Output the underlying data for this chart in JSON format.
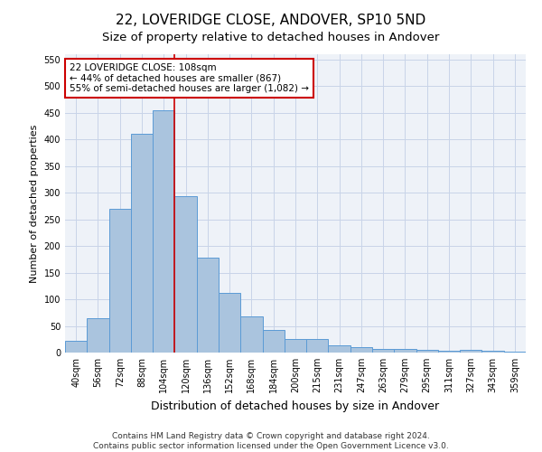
{
  "title": "22, LOVERIDGE CLOSE, ANDOVER, SP10 5ND",
  "subtitle": "Size of property relative to detached houses in Andover",
  "xlabel": "Distribution of detached houses by size in Andover",
  "ylabel": "Number of detached properties",
  "categories": [
    "40sqm",
    "56sqm",
    "72sqm",
    "88sqm",
    "104sqm",
    "120sqm",
    "136sqm",
    "152sqm",
    "168sqm",
    "184sqm",
    "200sqm",
    "215sqm",
    "231sqm",
    "247sqm",
    "263sqm",
    "279sqm",
    "295sqm",
    "311sqm",
    "327sqm",
    "343sqm",
    "359sqm"
  ],
  "values": [
    22,
    65,
    270,
    410,
    455,
    293,
    178,
    112,
    68,
    43,
    25,
    25,
    13,
    10,
    7,
    7,
    5,
    4,
    5,
    3,
    2
  ],
  "bar_color": "#aac4de",
  "bar_edge_color": "#5b9bd5",
  "property_line_index": 4,
  "annotation_line1": "22 LOVERIDGE CLOSE: 108sqm",
  "annotation_line2": "← 44% of detached houses are smaller (867)",
  "annotation_line3": "55% of semi-detached houses are larger (1,082) →",
  "annotation_box_color": "#ffffff",
  "annotation_box_edge_color": "#cc0000",
  "red_line_color": "#cc0000",
  "ylim": [
    0,
    560
  ],
  "yticks": [
    0,
    50,
    100,
    150,
    200,
    250,
    300,
    350,
    400,
    450,
    500,
    550
  ],
  "grid_color": "#c8d4e8",
  "background_color": "#eef2f8",
  "footer_line1": "Contains HM Land Registry data © Crown copyright and database right 2024.",
  "footer_line2": "Contains public sector information licensed under the Open Government Licence v3.0.",
  "title_fontsize": 11,
  "subtitle_fontsize": 9.5,
  "xlabel_fontsize": 9,
  "ylabel_fontsize": 8,
  "tick_fontsize": 7,
  "annotation_fontsize": 7.5,
  "footer_fontsize": 6.5
}
